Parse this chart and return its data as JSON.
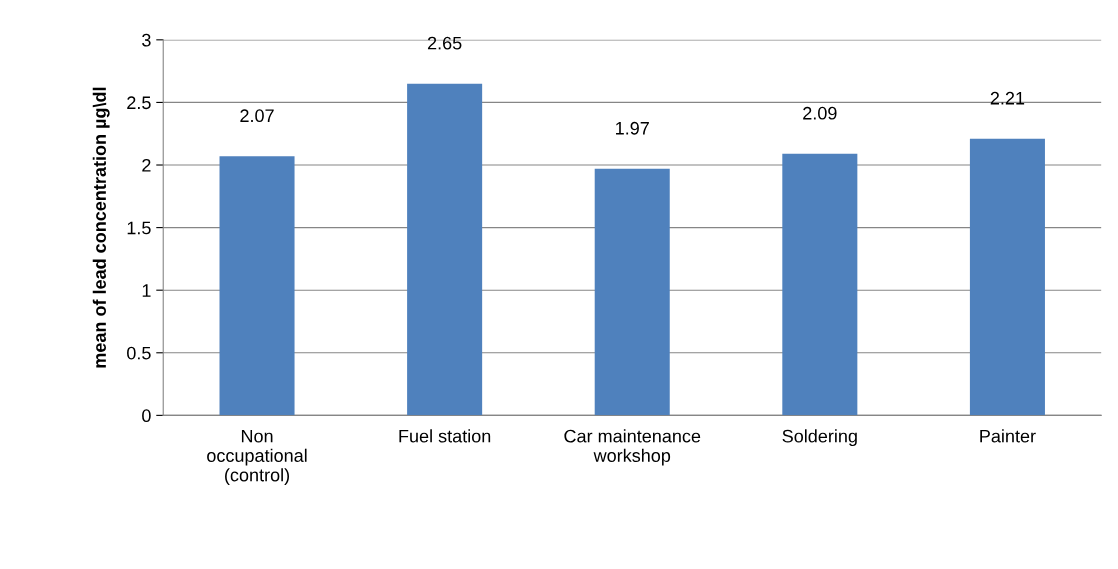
{
  "chart_data": {
    "type": "bar",
    "categories": [
      "Non\noccupational\n(control)",
      "Fuel station",
      "Car maintenance\nworkshop",
      "Soldering",
      "Painter"
    ],
    "values": [
      2.07,
      2.65,
      1.97,
      2.09,
      2.21
    ],
    "color": "#4f81bd",
    "ylabel": "mean of lead concentration µg\\dl",
    "ylim": [
      0,
      3
    ],
    "yticks": [
      0,
      0.5,
      1,
      1.5,
      2,
      2.5,
      3
    ],
    "grid": "y",
    "data_labels": true
  }
}
